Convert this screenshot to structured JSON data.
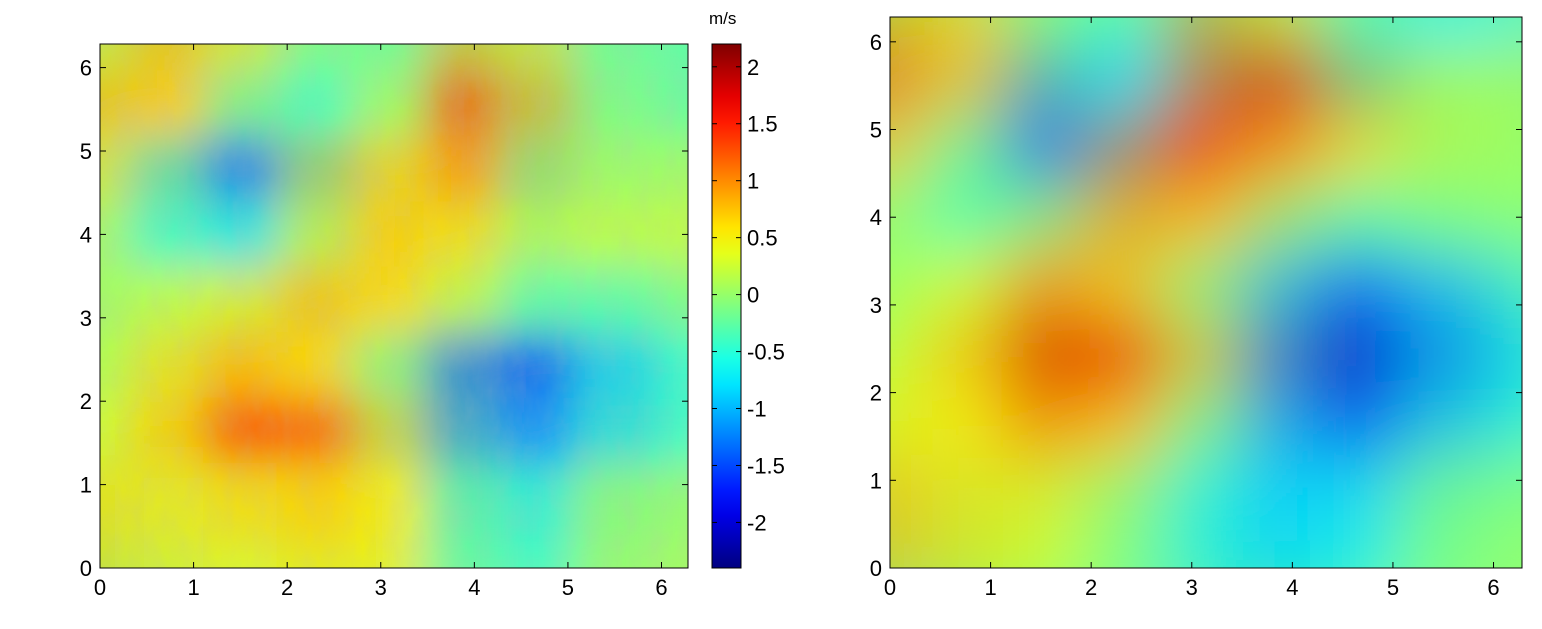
{
  "chart_data": [
    {
      "type": "heatmap",
      "xlim": [
        0,
        6.283
      ],
      "ylim": [
        0,
        6.283
      ],
      "x_ticks": [
        "0",
        "1",
        "2",
        "3",
        "4",
        "5",
        "6"
      ],
      "y_ticks": [
        "0",
        "1",
        "2",
        "3",
        "4",
        "5",
        "6"
      ],
      "colormap": "jet",
      "colorbar": {
        "unit": "m/s",
        "range": [
          -2.4,
          2.2
        ],
        "ticks": [
          "2",
          "1.5",
          "1",
          "0.5",
          "0",
          "-0.5",
          "-1",
          "-1.5",
          "-2"
        ]
      },
      "field": {
        "grid_note": "approximate field values, 8x8 samples over x,y in [0,2π], rows from y=6.28 (top) to y=0",
        "values": [
          [
            0.6,
            0.9,
            0.3,
            -0.3,
            -0.2,
            0.9,
            0.2,
            -0.4
          ],
          [
            0.9,
            0.6,
            -0.5,
            -0.4,
            0.3,
            1.6,
            0.1,
            -0.2
          ],
          [
            0.3,
            -0.9,
            -1.6,
            0.4,
            0.8,
            0.9,
            -0.3,
            0.2
          ],
          [
            0.0,
            -0.6,
            -0.5,
            0.5,
            0.8,
            0.4,
            0.0,
            0.3
          ],
          [
            0.1,
            0.4,
            0.6,
            0.9,
            0.5,
            0.0,
            -0.5,
            -0.3
          ],
          [
            0.2,
            0.7,
            0.9,
            0.5,
            -0.4,
            -1.6,
            -1.5,
            -0.6
          ],
          [
            0.4,
            0.8,
            1.6,
            1.2,
            0.2,
            -1.2,
            -1.1,
            -0.4
          ],
          [
            0.7,
            0.3,
            0.5,
            0.6,
            0.5,
            -0.6,
            -0.4,
            0.2
          ]
        ]
      }
    },
    {
      "type": "heatmap",
      "xlim": [
        0,
        6.283
      ],
      "ylim": [
        0,
        6.283
      ],
      "x_ticks": [
        "0",
        "1",
        "2",
        "3",
        "4",
        "5",
        "6"
      ],
      "y_ticks": [
        "0",
        "1",
        "2",
        "3",
        "4",
        "5",
        "6"
      ],
      "colormap": "jet",
      "field": {
        "grid_note": "approximate smoothed field values, 8x8 samples over x,y in [0,2π], rows from y=6.28 (top) to y=0",
        "values": [
          [
            1.0,
            0.6,
            -0.3,
            -0.5,
            1.1,
            0.3,
            -0.7,
            -0.8
          ],
          [
            1.4,
            0.3,
            -1.3,
            -0.7,
            1.3,
            1.9,
            -0.3,
            0.4
          ],
          [
            0.5,
            -0.6,
            -1.6,
            0.9,
            1.6,
            0.6,
            0.6,
            -0.1
          ],
          [
            -0.2,
            -0.4,
            0.2,
            1.0,
            0.6,
            -0.3,
            -0.5,
            0.0
          ],
          [
            0.2,
            0.5,
            1.3,
            0.4,
            -0.4,
            -1.2,
            -1.6,
            -0.8
          ],
          [
            0.3,
            0.9,
            1.9,
            1.4,
            0.3,
            -1.6,
            -2.2,
            -0.9
          ],
          [
            0.6,
            0.4,
            1.1,
            0.5,
            -0.5,
            -1.2,
            -1.4,
            -0.5
          ],
          [
            0.9,
            0.2,
            0.3,
            -0.3,
            -0.8,
            -0.9,
            -0.6,
            0.1
          ]
        ]
      }
    }
  ]
}
